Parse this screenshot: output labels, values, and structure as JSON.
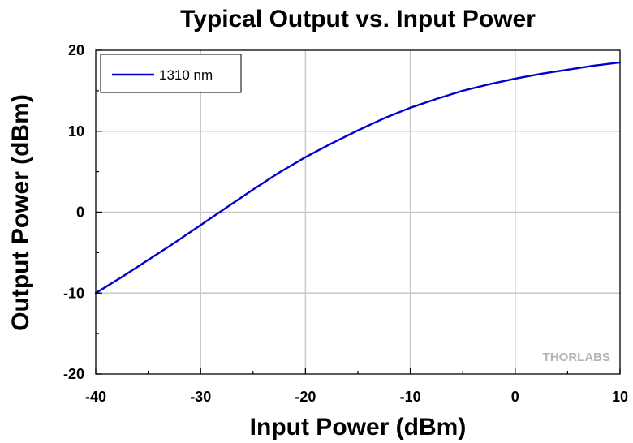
{
  "chart_data": {
    "type": "line",
    "title": "Typical Output vs. Input Power",
    "xlabel": "Input Power (dBm)",
    "ylabel": "Output Power (dBm)",
    "xlim": [
      -40,
      10
    ],
    "ylim": [
      -20,
      20
    ],
    "xticks": [
      -40,
      -30,
      -20,
      -10,
      0,
      10
    ],
    "yticks": [
      -20,
      -10,
      0,
      10,
      20
    ],
    "xtick_labels": [
      "-40",
      "-30",
      "-20",
      "-10",
      "0",
      "10"
    ],
    "ytick_labels": [
      "-20",
      "-10",
      "0",
      "10",
      "20"
    ],
    "grid": true,
    "legend_position": "top-left",
    "series": [
      {
        "name": "1310 nm",
        "color": "#0000cc",
        "x": [
          -40,
          -37.5,
          -35,
          -32.5,
          -30,
          -27.5,
          -25,
          -22.5,
          -20,
          -17.5,
          -15,
          -12.5,
          -10,
          -7.5,
          -5,
          -2.5,
          0,
          2.5,
          5,
          7.5,
          10
        ],
        "y": [
          -10,
          -8,
          -5.9,
          -3.8,
          -1.6,
          0.6,
          2.8,
          4.9,
          6.8,
          8.5,
          10.1,
          11.6,
          12.9,
          14,
          15,
          15.8,
          16.5,
          17.1,
          17.6,
          18.1,
          18.5
        ]
      }
    ]
  },
  "watermark": {
    "text": "THORLABS"
  }
}
